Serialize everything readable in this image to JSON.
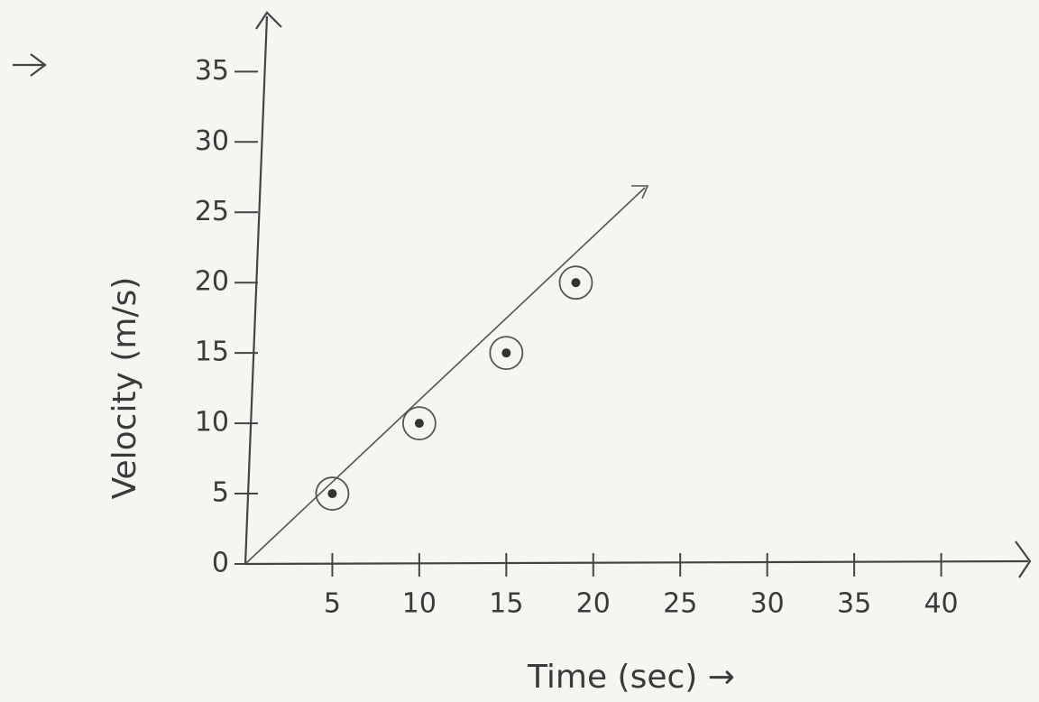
{
  "chart_data": {
    "type": "scatter",
    "x_label": "Time (sec) →",
    "y_label": "Velocity (m/s)",
    "x": [
      5,
      10,
      15,
      19
    ],
    "values": [
      5,
      10,
      15,
      20
    ],
    "color": "#333333",
    "xlim": [
      0,
      45
    ],
    "ylim": [
      0,
      39
    ],
    "xticks": [
      5,
      10,
      15,
      20,
      25,
      30,
      35,
      40
    ],
    "yticks": [
      0,
      5,
      10,
      15,
      20,
      25,
      30,
      35
    ],
    "grid": false
  }
}
